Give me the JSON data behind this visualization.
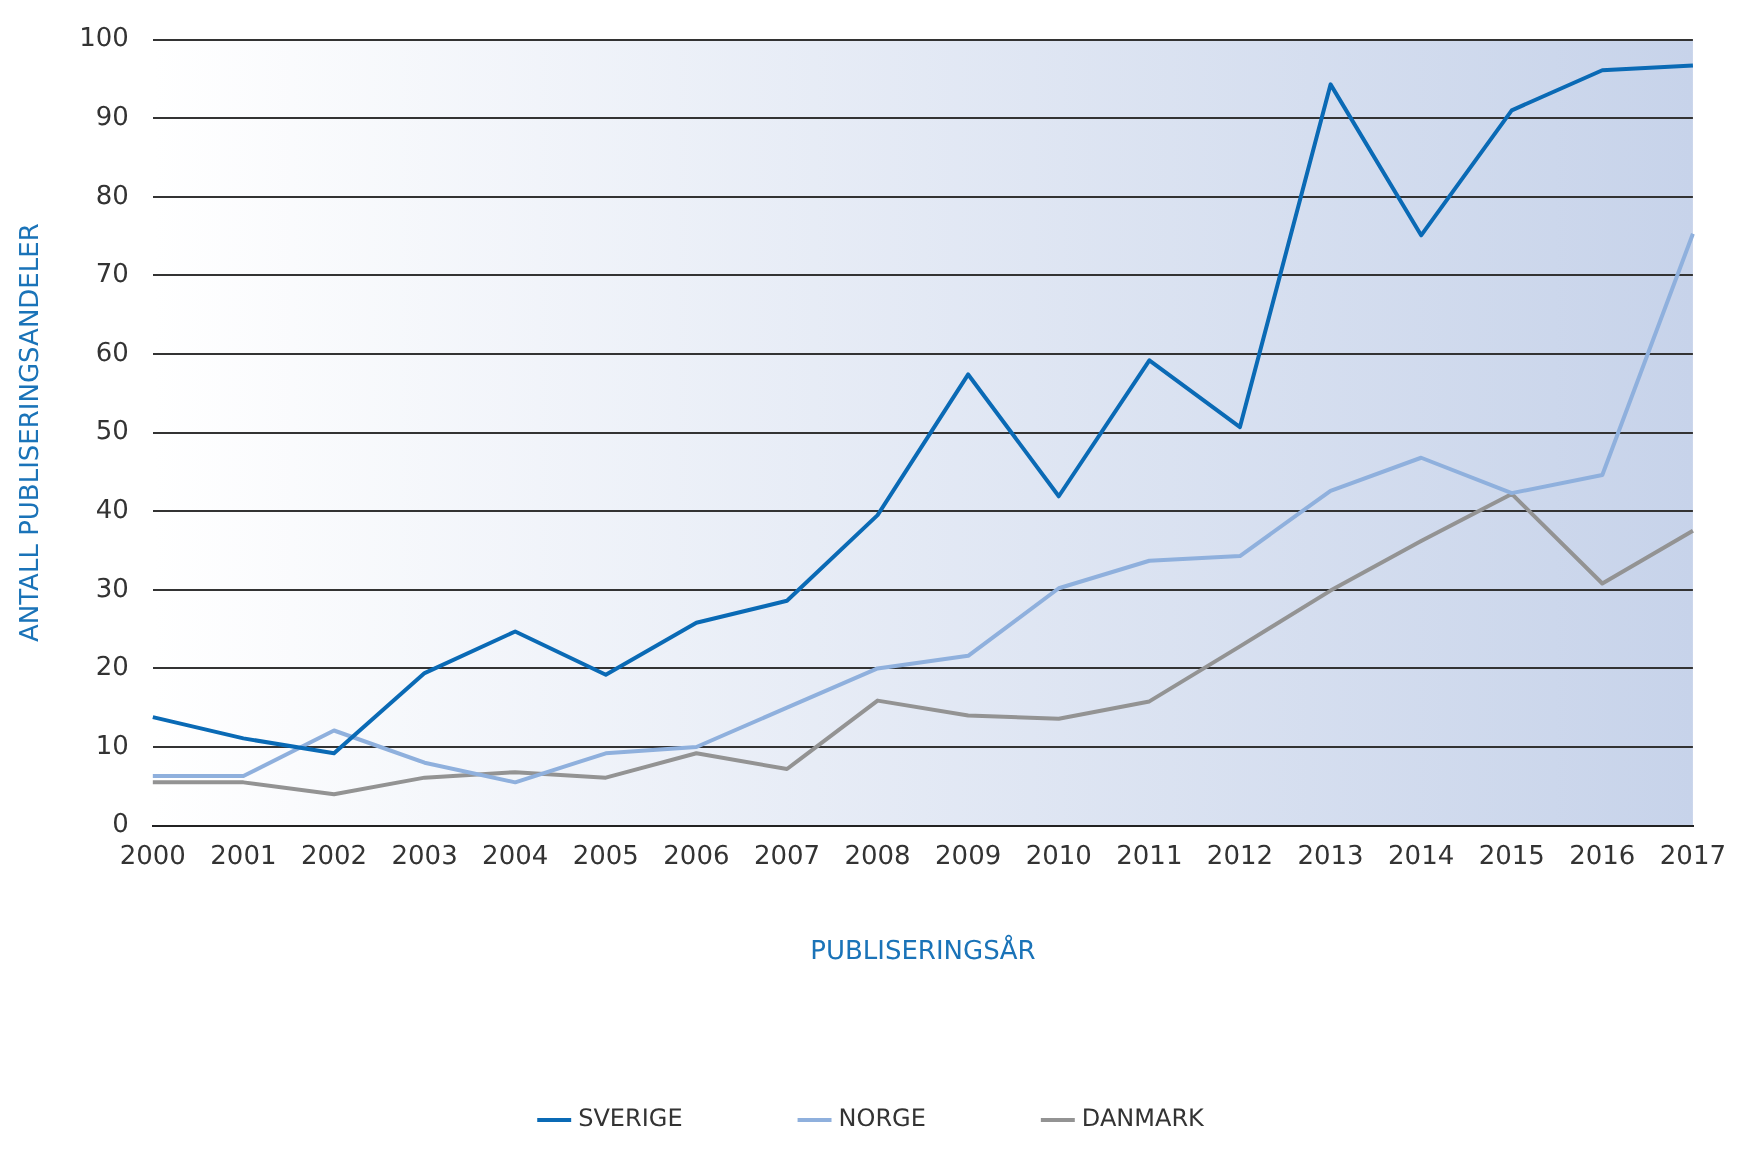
{
  "chart_data": {
    "type": "line",
    "xlabel": "PUBLISERINGSÅR",
    "ylabel": "ANTALL PUBLISERINGSANDELER",
    "categories": [
      "2000",
      "2001",
      "2002",
      "2003",
      "2004",
      "2005",
      "2006",
      "2007",
      "2008",
      "2009",
      "2010",
      "2011",
      "2012",
      "2013",
      "2014",
      "2015",
      "2016",
      "2017"
    ],
    "series": [
      {
        "name": "SVERIGE",
        "color": "#0a6ab5",
        "values": [
          13.8,
          11.1,
          9.2,
          19.4,
          24.7,
          19.2,
          25.8,
          28.6,
          39.5,
          57.4,
          41.9,
          59.2,
          50.7,
          94.3,
          75.1,
          91,
          96.1,
          96.7
        ]
      },
      {
        "name": "NORGE",
        "color": "#8fb0dd",
        "values": [
          6.3,
          6.3,
          12.1,
          8,
          5.5,
          9.2,
          10,
          15,
          20,
          21.6,
          30.2,
          33.7,
          34.3,
          42.6,
          46.8,
          42.3,
          44.6,
          75.3
        ]
      },
      {
        "name": "DANMARK",
        "color": "#939393",
        "values": [
          5.5,
          5.5,
          4,
          6.1,
          6.8,
          6.1,
          9.2,
          7.2,
          15.9,
          14,
          13.6,
          15.8,
          22.8,
          29.9,
          36.2,
          42.2,
          30.8,
          37.5
        ]
      }
    ],
    "ylim": [
      0,
      100
    ],
    "yticks": [
      0,
      10,
      20,
      30,
      40,
      50,
      60,
      70,
      80,
      90,
      100
    ],
    "grid": "y",
    "legend": "bottom",
    "marker": "none",
    "line_style": "solid"
  }
}
